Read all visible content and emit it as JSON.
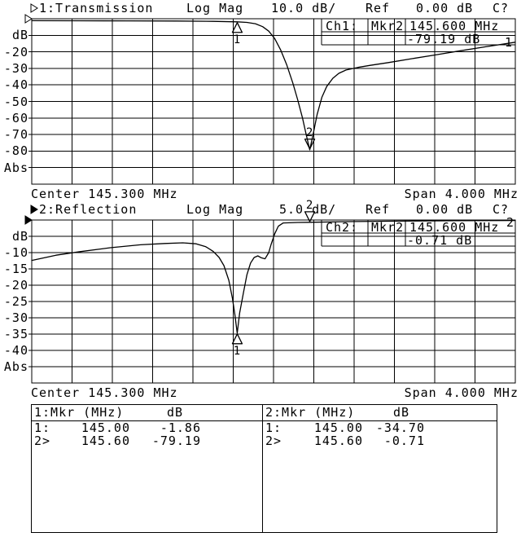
{
  "chart_data": [
    {
      "type": "line",
      "channel_active": false,
      "title": "1:Transmission",
      "format": "Log Mag",
      "scale_per_div": "10.0 dB/",
      "ref_label": "Ref",
      "ref_value": "0.00 dB",
      "cal_status": "C?",
      "unit": "dB",
      "abs_label": "Abs",
      "trace_label": "1",
      "xlabel_center": "Center 145.300 MHz",
      "xlabel_span": "Span 4.000 MHz",
      "xlim": [
        143.3,
        147.3
      ],
      "ylim": [
        -100,
        0
      ],
      "yticks": [
        "-20",
        "-30",
        "-40",
        "-50",
        "-60",
        "-70",
        "-80"
      ],
      "readout": {
        "channel": "Ch1:",
        "marker": "Mkr2",
        "freq": "145.600 MHz",
        "value": "-79.19 dB"
      },
      "markers": [
        {
          "label": "1",
          "mhz": 145.0,
          "db": -1.86,
          "style": "below"
        },
        {
          "label": "2",
          "mhz": 145.6,
          "db": -79.19,
          "style": "above"
        }
      ],
      "series": [
        {
          "name": "transmission-trace",
          "x": [
            143.3,
            143.7,
            144.1,
            144.5,
            144.8,
            145.0,
            145.08,
            145.15,
            145.21,
            145.26,
            145.31,
            145.36,
            145.41,
            145.46,
            145.5,
            145.54,
            145.57,
            145.6,
            145.63,
            145.66,
            145.7,
            145.74,
            145.79,
            145.84,
            145.9,
            146.0,
            146.1,
            146.25,
            146.45,
            146.65,
            146.85,
            147.05,
            147.3
          ],
          "y": [
            -1.2,
            -1.25,
            -1.3,
            -1.4,
            -1.6,
            -1.86,
            -2.2,
            -3.0,
            -4.8,
            -7.5,
            -12,
            -19,
            -28,
            -39,
            -49,
            -60,
            -70,
            -79.19,
            -69,
            -58,
            -47.5,
            -41,
            -36,
            -33,
            -31,
            -29.4,
            -28.2,
            -26.5,
            -24.1,
            -21.7,
            -19.3,
            -17.0,
            -14.2
          ]
        }
      ]
    },
    {
      "type": "line",
      "channel_active": true,
      "title": "2:Reflection",
      "format": "Log Mag",
      "scale_per_div": "5.0 dB/",
      "ref_label": "Ref",
      "ref_value": "0.00 dB",
      "cal_status": "C?",
      "unit": "dB",
      "abs_label": "Abs",
      "trace_label": "2",
      "xlabel_center": "Center 145.300 MHz",
      "xlabel_span": "Span 4.000 MHz",
      "xlim": [
        143.3,
        147.3
      ],
      "ylim": [
        -50,
        0
      ],
      "yticks": [
        "-10",
        "-15",
        "-20",
        "-25",
        "-30",
        "-35",
        "-40"
      ],
      "readout": {
        "channel": "Ch2:",
        "marker": "Mkr2",
        "freq": "145.600 MHz",
        "value": "-0.71 dB"
      },
      "markers": [
        {
          "label": "1",
          "mhz": 145.0,
          "db": -34.7,
          "style": "below"
        },
        {
          "label": "2",
          "mhz": 145.6,
          "db": -0.71,
          "style": "above"
        }
      ],
      "series": [
        {
          "name": "reflection-trace",
          "x": [
            143.3,
            143.5,
            143.7,
            143.95,
            144.2,
            144.4,
            144.55,
            144.66,
            144.74,
            144.8,
            144.85,
            144.89,
            144.93,
            144.96,
            144.98,
            145.0,
            145.02,
            145.05,
            145.08,
            145.11,
            145.14,
            145.17,
            145.2,
            145.23,
            145.26,
            145.28,
            145.31,
            145.34,
            145.38,
            145.5,
            145.6,
            145.9,
            146.3,
            146.8,
            147.3
          ],
          "y": [
            -12.4,
            -10.8,
            -9.7,
            -8.5,
            -7.6,
            -7.2,
            -7.0,
            -7.3,
            -8.2,
            -9.6,
            -11.5,
            -14.0,
            -18.5,
            -24.0,
            -29.0,
            -34.7,
            -28.5,
            -22.5,
            -16.8,
            -13.2,
            -11.5,
            -11.0,
            -11.6,
            -11.9,
            -10.0,
            -7.5,
            -4.2,
            -1.9,
            -0.9,
            -0.75,
            -0.71,
            -0.5,
            -0.35,
            -0.2,
            -0.15
          ]
        }
      ]
    }
  ],
  "marker_table": {
    "columns": [
      {
        "header_label": "1:Mkr (MHz)",
        "header_unit": "dB",
        "rows": [
          {
            "id": "1:",
            "freq": "145.00",
            "db": "-1.86"
          },
          {
            "id": "2>",
            "freq": "145.60",
            "db": "-79.19"
          }
        ]
      },
      {
        "header_label": "2:Mkr (MHz)",
        "header_unit": "dB",
        "rows": [
          {
            "id": "1:",
            "freq": "145.00",
            "db": "-34.70"
          },
          {
            "id": "2>",
            "freq": "145.60",
            "db": "-0.71"
          }
        ]
      }
    ]
  }
}
